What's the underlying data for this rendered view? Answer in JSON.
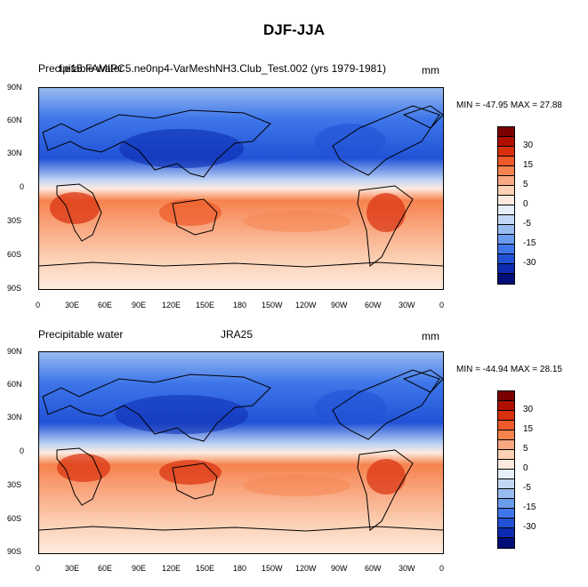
{
  "figure": {
    "title": "DJF-JJA"
  },
  "panels": [
    {
      "left_title": "Precipitable water",
      "center_title": "f.e15.FAMIPC5.ne0np4-VarMeshNH3.Club_Test.002 (yrs 1979-1981)",
      "units": "mm",
      "min_max": "MIN = -47.95 MAX =  27.88"
    },
    {
      "left_title": "Precipitable water",
      "center_title": "JRA25",
      "units": "mm",
      "min_max": "MIN = -44.94 MAX =  28.15"
    }
  ],
  "axes": {
    "lat_labels": [
      "90N",
      "60N",
      "30N",
      "0",
      "30S",
      "60S",
      "90S"
    ],
    "lon_labels": [
      "0",
      "30E",
      "60E",
      "90E",
      "120E",
      "150E",
      "180",
      "150W",
      "120W",
      "90W",
      "60W",
      "30W",
      "0"
    ]
  },
  "colorbar": {
    "labels": [
      "30",
      "15",
      "5",
      "0",
      "-5",
      "-15",
      "-30"
    ],
    "colors": [
      "#7a0000",
      "#b01000",
      "#d8300e",
      "#ee5a2a",
      "#f6834e",
      "#f9a882",
      "#fcd0b4",
      "#fdeadf",
      "#e6eefa",
      "#c3d7f5",
      "#98bcf0",
      "#6b9bec",
      "#3f77ea",
      "#2152d6",
      "#0c2bb0",
      "#000e78"
    ]
  }
}
